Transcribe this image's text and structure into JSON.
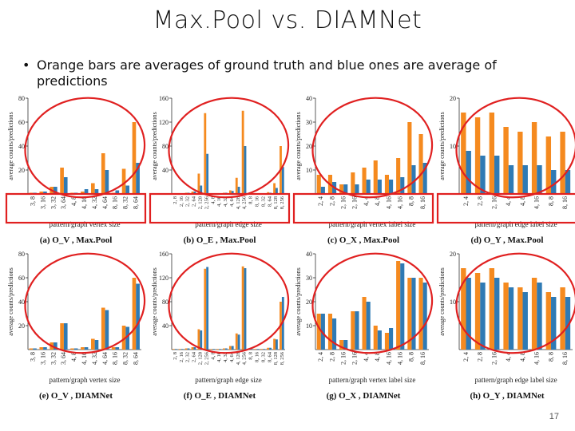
{
  "slide": {
    "title": "Max.Pool vs. DIAMNet",
    "bullet": "Orange bars are averages of ground truth and blue ones are average of predictions",
    "page_number": "17"
  },
  "colors": {
    "truth": "#f58a1f",
    "prediction": "#2f7ab4",
    "ellipse": "#e02020",
    "box": "#e02020"
  },
  "chart_data": [
    {
      "type": "bar",
      "panel": "a",
      "caption": "(a) O_V , Max.Pool",
      "xlabel": "pattern/graph vertex size",
      "ylabel": "average counts/predictions",
      "ylim": [
        0,
        80
      ],
      "yticks": [
        20,
        40,
        60,
        80
      ],
      "categories": [
        "3, 8",
        "3, 16",
        "3, 32",
        "3, 64",
        "4, 8",
        "4, 16",
        "4, 32",
        "4, 64",
        "8, 16",
        "8, 32",
        "8, 64"
      ],
      "series": [
        {
          "values": [
            1,
            2,
            6,
            22,
            1,
            2,
            9,
            34,
            1,
            21,
            60
          ]
        },
        {
          "values": [
            1,
            2,
            6,
            14,
            1,
            4,
            4,
            20,
            3,
            7,
            26
          ]
        }
      ]
    },
    {
      "type": "bar",
      "panel": "b",
      "caption": "(b) O_E , Max.Pool",
      "xlabel": "pattern/graph edge size",
      "ylabel": "average counts/predictions",
      "ylim": [
        0,
        160
      ],
      "yticks": [
        40,
        80,
        120,
        160
      ],
      "categories": [
        "2, 8",
        "2, 16",
        "2, 32",
        "2, 64",
        "2, 128",
        "2, 256",
        "4, 8",
        "4, 16",
        "4, 32",
        "4, 64",
        "4, 128",
        "4, 256",
        "8, 8",
        "8, 16",
        "8, 32",
        "8, 64",
        "8, 128",
        "8, 256"
      ],
      "series": [
        {
          "values": [
            1,
            1,
            2,
            4,
            34,
            135,
            1,
            1,
            2,
            6,
            27,
            139,
            1,
            1,
            1,
            3,
            18,
            80
          ]
        },
        {
          "values": [
            1,
            1,
            2,
            4,
            14,
            67,
            1,
            1,
            2,
            5,
            12,
            80,
            1,
            1,
            1,
            2,
            10,
            45
          ]
        }
      ]
    },
    {
      "type": "bar",
      "panel": "c",
      "caption": "(c) O_X , Max.Pool",
      "xlabel": "pattern/graph vertex label size",
      "ylabel": "average counts/predictions",
      "ylim": [
        0,
        40
      ],
      "yticks": [
        10,
        20,
        30,
        40
      ],
      "categories": [
        "2, 4",
        "2, 8",
        "2, 16",
        "2, 16",
        "4, 4",
        "4, 8",
        "4, 16",
        "4, 16",
        "8, 8",
        "8, 16"
      ],
      "series": [
        {
          "values": [
            8,
            8,
            4,
            9,
            11,
            14,
            8,
            15,
            30,
            25
          ]
        },
        {
          "values": [
            3,
            5,
            4,
            4,
            6,
            6,
            6,
            7,
            12,
            13
          ]
        }
      ]
    },
    {
      "type": "bar",
      "panel": "d",
      "caption": "(d) O_Y , Max.Pool",
      "xlabel": "pattern/graph edge label size",
      "ylabel": "average counts/predictions",
      "ylim": [
        0,
        20
      ],
      "yticks": [
        10,
        20
      ],
      "categories": [
        "2, 4",
        "2, 8",
        "2, 16",
        "4, 4",
        "4, 8",
        "4, 16",
        "8, 8",
        "8, 16"
      ],
      "series": [
        {
          "values": [
            17,
            16,
            17,
            14,
            13,
            15,
            12,
            13
          ]
        },
        {
          "values": [
            9,
            8,
            8,
            6,
            6,
            6,
            5,
            5
          ]
        }
      ]
    },
    {
      "type": "bar",
      "panel": "e",
      "caption": "(e) O_V , DIAMNet",
      "xlabel": "pattern/graph vertex size",
      "ylabel": "average counts/predictions",
      "ylim": [
        0,
        80
      ],
      "yticks": [
        20,
        40,
        60,
        80
      ],
      "categories": [
        "3, 8",
        "3, 16",
        "3, 32",
        "3, 64",
        "4, 8",
        "4, 16",
        "4, 32",
        "4, 64",
        "8, 16",
        "8, 32",
        "8, 64"
      ],
      "series": [
        {
          "values": [
            1,
            2,
            6,
            22,
            1,
            2,
            9,
            35,
            2,
            20,
            60
          ]
        },
        {
          "values": [
            1,
            2,
            6,
            22,
            1,
            2,
            8,
            33,
            2,
            19,
            55
          ]
        }
      ]
    },
    {
      "type": "bar",
      "panel": "f",
      "caption": "(f) O_E , DIAMNet",
      "xlabel": "pattern/graph edge size",
      "ylabel": "average counts/predictions",
      "ylim": [
        0,
        160
      ],
      "yticks": [
        40,
        80,
        120,
        160
      ],
      "categories": [
        "2, 8",
        "2, 16",
        "2, 32",
        "2, 64",
        "2, 128",
        "2, 256",
        "4, 8",
        "4, 16",
        "4, 32",
        "4, 64",
        "4, 128",
        "4, 256",
        "8, 8",
        "8, 16",
        "8, 32",
        "8, 64",
        "8, 128",
        "8, 256"
      ],
      "series": [
        {
          "values": [
            1,
            1,
            2,
            4,
            34,
            135,
            1,
            1,
            2,
            6,
            27,
            139,
            1,
            1,
            1,
            3,
            18,
            80
          ]
        },
        {
          "values": [
            1,
            1,
            2,
            4,
            32,
            138,
            1,
            1,
            2,
            6,
            25,
            136,
            1,
            1,
            1,
            3,
            17,
            88
          ]
        }
      ]
    },
    {
      "type": "bar",
      "panel": "g",
      "caption": "(g) O_X , DIAMNet",
      "xlabel": "pattern/graph vertex label size",
      "ylabel": "average counts/predictions",
      "ylim": [
        0,
        40
      ],
      "yticks": [
        10,
        20,
        30,
        40
      ],
      "categories": [
        "2, 4",
        "2, 8",
        "2, 16",
        "2, 16",
        "4, 4",
        "4, 8",
        "4, 16",
        "4, 16",
        "8, 8",
        "8, 16"
      ],
      "series": [
        {
          "values": [
            15,
            15,
            4,
            16,
            22,
            10,
            7,
            37,
            30,
            30
          ]
        },
        {
          "values": [
            15,
            13,
            4,
            16,
            20,
            8,
            9,
            36,
            30,
            28
          ]
        }
      ]
    },
    {
      "type": "bar",
      "panel": "h",
      "caption": "(h) O_Y , DIAMNet",
      "xlabel": "pattern/graph edge label size",
      "ylabel": "average counts/predictions",
      "ylim": [
        0,
        20
      ],
      "yticks": [
        10,
        20
      ],
      "categories": [
        "2, 4",
        "2, 8",
        "2, 16",
        "4, 4",
        "4, 8",
        "4, 16",
        "8, 8",
        "8, 16"
      ],
      "series": [
        {
          "values": [
            17,
            16,
            17,
            14,
            13,
            15,
            12,
            13
          ]
        },
        {
          "values": [
            15,
            14,
            15,
            13,
            12,
            14,
            11,
            11
          ]
        }
      ]
    }
  ]
}
